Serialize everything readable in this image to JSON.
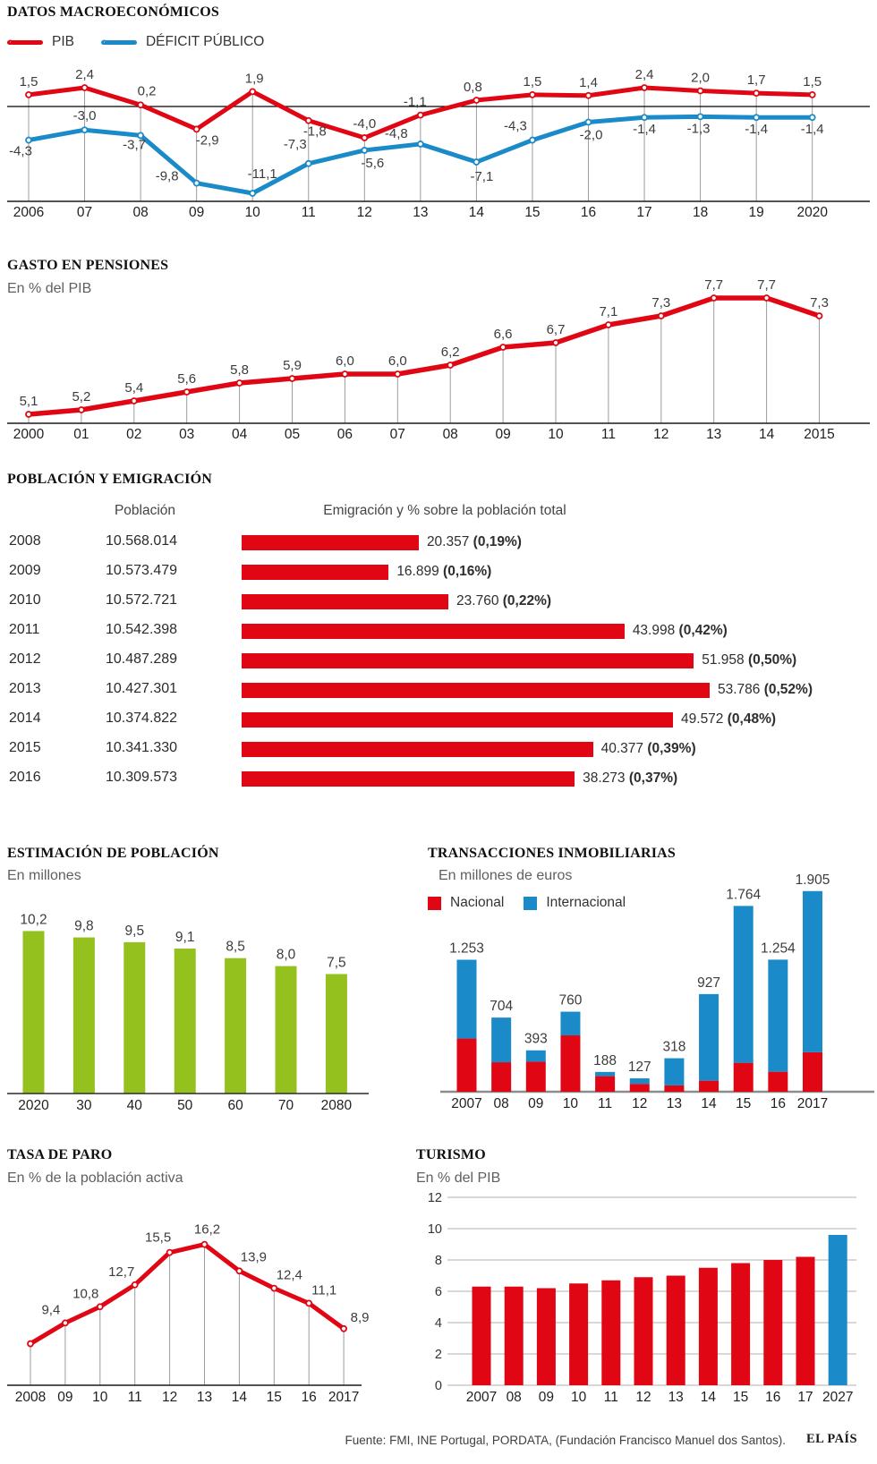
{
  "colors": {
    "red": "#e00613",
    "blue": "#1b8ac9",
    "green": "#95c11f",
    "label": "#3c3c3c",
    "xlabel": "#1f1f1f",
    "leader": "#9b9b9b",
    "axis": "#1a1a1a",
    "gray_axis": "#8c8c8c",
    "grid": "#b0b0b0"
  },
  "footer": {
    "source": "Fuente: FMI, INE Portugal, PORDATA, (Fundación Francisco Manuel dos Santos).",
    "brand": "EL PAÍS"
  },
  "chart_data": [
    {
      "id": "macro",
      "type": "line",
      "title": "DATOS MACROECONÓMICOS",
      "legend": [
        {
          "label": "PIB",
          "color": "#e00613"
        },
        {
          "label": "DÉFICIT PÚBLICO",
          "color": "#1b8ac9"
        }
      ],
      "x_labels": [
        "2006",
        "07",
        "08",
        "09",
        "10",
        "11",
        "12",
        "13",
        "14",
        "15",
        "16",
        "17",
        "18",
        "19",
        "2020"
      ],
      "series": [
        {
          "name": "PIB",
          "color": "#e00613",
          "values": [
            1.5,
            2.4,
            0.2,
            -2.9,
            1.9,
            -1.8,
            -4.0,
            -1.1,
            0.8,
            1.5,
            1.4,
            2.4,
            2.0,
            1.7,
            1.5
          ],
          "labels": [
            "1,5",
            "2,4",
            "0,2",
            "-2,9",
            "1,9",
            "-1,8",
            "-4,0",
            "-1,1",
            "0,8",
            "1,5",
            "1,4",
            "2,4",
            "2,0",
            "1,7",
            "1,5"
          ]
        },
        {
          "name": "DÉFICIT PÚBLICO",
          "color": "#1b8ac9",
          "values": [
            -4.3,
            -3.0,
            -3.7,
            -9.8,
            -11.1,
            -7.3,
            -5.6,
            -4.8,
            -7.1,
            -4.3,
            -2.0,
            -1.4,
            -1.3,
            -1.4,
            -1.4
          ],
          "labels": [
            "-4,3",
            "-3,0",
            "-3,7",
            "-9,8",
            "-11,1",
            "-7,3",
            "-5,6",
            "-4,8",
            "-7,1",
            "-4,3",
            "-2,0",
            "-1,4",
            "-1,3",
            "-1,4",
            "-1,4"
          ]
        }
      ]
    },
    {
      "id": "pensions",
      "type": "line",
      "title": "GASTO EN PENSIONES",
      "subtitle": "En % del PIB",
      "x_labels": [
        "2000",
        "01",
        "02",
        "03",
        "04",
        "05",
        "06",
        "07",
        "08",
        "09",
        "10",
        "11",
        "12",
        "13",
        "14",
        "2015"
      ],
      "series": [
        {
          "name": "Gasto en pensiones",
          "color": "#e00613",
          "values": [
            5.1,
            5.2,
            5.4,
            5.6,
            5.8,
            5.9,
            6.0,
            6.0,
            6.2,
            6.6,
            6.7,
            7.1,
            7.3,
            7.7,
            7.7,
            7.3
          ],
          "labels": [
            "5,1",
            "5,2",
            "5,4",
            "5,6",
            "5,8",
            "5,9",
            "6,0",
            "6,0",
            "6,2",
            "6,6",
            "6,7",
            "7,1",
            "7,3",
            "7,7",
            "7,7",
            "7,3"
          ]
        }
      ]
    },
    {
      "id": "emigration",
      "type": "table",
      "title": "POBLACIÓN Y EMIGRACIÓN",
      "col_headers": [
        "Población",
        "Emigración y % sobre la población total"
      ],
      "rows": [
        {
          "year": "2008",
          "population": "10.568.014",
          "emigration": 20357,
          "emigration_label": "20.357",
          "pct_label": "(0,19%)"
        },
        {
          "year": "2009",
          "population": "10.573.479",
          "emigration": 16899,
          "emigration_label": "16.899",
          "pct_label": "(0,16%)"
        },
        {
          "year": "2010",
          "population": "10.572.721",
          "emigration": 23760,
          "emigration_label": "23.760",
          "pct_label": "(0,22%)"
        },
        {
          "year": "2011",
          "population": "10.542.398",
          "emigration": 43998,
          "emigration_label": "43.998",
          "pct_label": "(0,42%)"
        },
        {
          "year": "2012",
          "population": "10.487.289",
          "emigration": 51958,
          "emigration_label": "51.958",
          "pct_label": "(0,50%)"
        },
        {
          "year": "2013",
          "population": "10.427.301",
          "emigration": 53786,
          "emigration_label": "53.786",
          "pct_label": "(0,52%)"
        },
        {
          "year": "2014",
          "population": "10.374.822",
          "emigration": 49572,
          "emigration_label": "49.572",
          "pct_label": "(0,48%)"
        },
        {
          "year": "2015",
          "population": "10.341.330",
          "emigration": 40377,
          "emigration_label": "40.377",
          "pct_label": "(0,39%)"
        },
        {
          "year": "2016",
          "population": "10.309.573",
          "emigration": 38273,
          "emigration_label": "38.273",
          "pct_label": "(0,37%)"
        }
      ]
    },
    {
      "id": "population_estimate",
      "type": "bar",
      "title": "ESTIMACIÓN DE POBLACIÓN",
      "subtitle": "En millones",
      "color": "#95c11f",
      "categories": [
        "2020",
        "30",
        "40",
        "50",
        "60",
        "70",
        "2080"
      ],
      "values": [
        10.2,
        9.8,
        9.5,
        9.1,
        8.5,
        8.0,
        7.5
      ],
      "labels": [
        "10,2",
        "9,8",
        "9,5",
        "9,1",
        "8,5",
        "8,0",
        "7,5"
      ]
    },
    {
      "id": "transactions",
      "type": "stacked-bar",
      "title": "TRANSACCIONES INMOBILIARIAS",
      "subtitle": "En millones de euros",
      "legend": [
        {
          "label": "Nacional",
          "color": "#e00613"
        },
        {
          "label": "Internacional",
          "color": "#1b8ac9"
        }
      ],
      "categories": [
        "2007",
        "08",
        "09",
        "10",
        "11",
        "12",
        "13",
        "14",
        "15",
        "16",
        "2017"
      ],
      "totals": [
        1253,
        704,
        393,
        760,
        188,
        127,
        318,
        927,
        1764,
        1254,
        1905
      ],
      "total_labels": [
        "1.253",
        "704",
        "393",
        "760",
        "188",
        "127",
        "318",
        "927",
        "1.764",
        "1.254",
        "1.905"
      ],
      "series": [
        {
          "name": "Nacional",
          "color": "#e00613",
          "values": [
            505,
            280,
            285,
            535,
            148,
            75,
            60,
            105,
            275,
            190,
            375
          ]
        },
        {
          "name": "Internacional",
          "color": "#1b8ac9",
          "values": [
            748,
            424,
            108,
            225,
            40,
            52,
            258,
            822,
            1489,
            1064,
            1530
          ]
        }
      ]
    },
    {
      "id": "paro",
      "type": "line",
      "title": "TASA DE PARO",
      "subtitle": "En % de la población activa",
      "x_labels": [
        "2008",
        "09",
        "10",
        "11",
        "12",
        "13",
        "14",
        "15",
        "16",
        "2017"
      ],
      "series": [
        {
          "name": "Tasa de paro",
          "color": "#e00613",
          "values": [
            7.6,
            9.4,
            10.8,
            12.7,
            15.5,
            16.2,
            13.9,
            12.4,
            11.1,
            8.9
          ],
          "labels": [
            "",
            "9,4",
            "10,8",
            "12,7",
            "15,5",
            "16,2",
            "13,9",
            "12,4",
            "11,1",
            "8,9"
          ]
        }
      ]
    },
    {
      "id": "turismo",
      "type": "bar",
      "title": "TURISMO",
      "subtitle": "En % del PIB",
      "categories": [
        "2007",
        "08",
        "09",
        "10",
        "11",
        "12",
        "13",
        "14",
        "15",
        "16",
        "17",
        "2027"
      ],
      "values": [
        6.3,
        6.3,
        6.2,
        6.5,
        6.7,
        6.9,
        7.0,
        7.5,
        7.8,
        8.0,
        8.2,
        9.6
      ],
      "bar_colors": [
        "red",
        "red",
        "red",
        "red",
        "red",
        "red",
        "red",
        "red",
        "red",
        "red",
        "red",
        "blue"
      ],
      "y_ticks": [
        0,
        2,
        4,
        6,
        8,
        10,
        12
      ],
      "y_tick_labels": [
        "0",
        "2",
        "4",
        "6",
        "8",
        "10",
        "12"
      ],
      "ylim": [
        0,
        12
      ]
    }
  ]
}
